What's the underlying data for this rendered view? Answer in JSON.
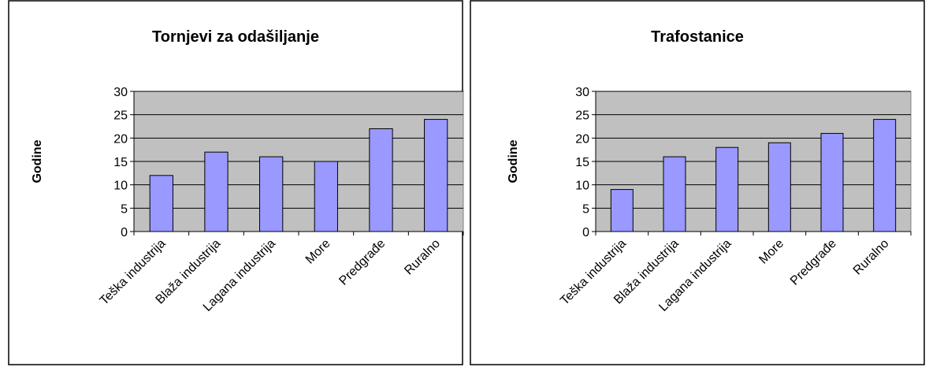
{
  "chart_data": [
    {
      "type": "bar",
      "title": "Tornjevi za odašiljanje",
      "ylabel": "Godine",
      "xlabel": "",
      "categories": [
        "Teška industrija",
        "Blaža industrija",
        "Lagana industrija",
        "More",
        "Predgrađe",
        "Ruralno"
      ],
      "values": [
        12,
        17,
        16,
        15,
        22,
        24
      ],
      "ylim": [
        0,
        30
      ],
      "yticks": [
        "0",
        "5",
        "10",
        "15",
        "20",
        "25",
        "30"
      ],
      "grid": true,
      "legend": "none",
      "colors": {
        "bar": "#9999ff",
        "plot_background": "#c0c0c0"
      }
    },
    {
      "type": "bar",
      "title": "Trafostanice",
      "ylabel": "Godine",
      "xlabel": "",
      "categories": [
        "Teška industrija",
        "Blaža industrija",
        "Lagana industrija",
        "More",
        "Predgrađe",
        "Ruralno"
      ],
      "values": [
        9,
        16,
        18,
        19,
        21,
        24
      ],
      "ylim": [
        0,
        30
      ],
      "yticks": [
        "0",
        "5",
        "10",
        "15",
        "20",
        "25",
        "30"
      ],
      "grid": true,
      "legend": "none",
      "colors": {
        "bar": "#9999ff",
        "plot_background": "#c0c0c0"
      }
    }
  ]
}
